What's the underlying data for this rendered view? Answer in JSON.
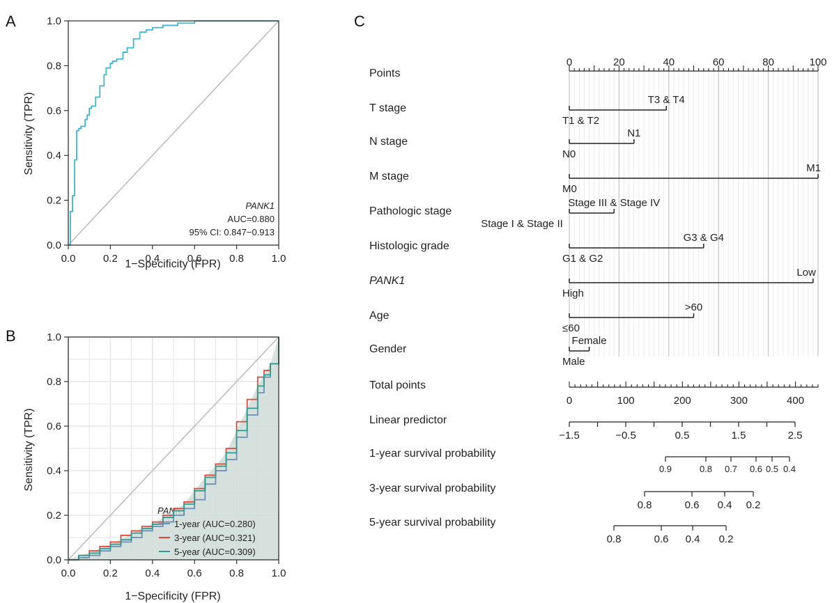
{
  "panels": {
    "A": {
      "letter": "A",
      "chart_data": {
        "type": "line",
        "xlabel": "1−Specificity (FPR)",
        "ylabel": "Sensitivity (TPR)",
        "xlim": [
          0,
          1
        ],
        "ylim": [
          0,
          1
        ],
        "xticks": [
          "0.0",
          "0.2",
          "0.4",
          "0.6",
          "0.8",
          "1.0"
        ],
        "yticks": [
          "0.0",
          "0.2",
          "0.4",
          "0.6",
          "0.8",
          "1.0"
        ],
        "grid": false,
        "diagonal": true,
        "annotation": {
          "gene": "PANK1",
          "auc": "AUC=0.880",
          "ci": "95% CI: 0.847−0.913"
        },
        "series": [
          {
            "color": "#3cb7d2",
            "x": [
              0,
              0.01,
              0.01,
              0.02,
              0.03,
              0.03,
              0.04,
              0.04,
              0.05,
              0.06,
              0.08,
              0.09,
              0.1,
              0.11,
              0.13,
              0.15,
              0.17,
              0.18,
              0.2,
              0.21,
              0.23,
              0.26,
              0.28,
              0.31,
              0.34,
              0.37,
              0.4,
              0.45,
              0.52,
              0.6,
              0.7,
              0.8,
              0.9,
              1.0
            ],
            "y": [
              0,
              0.05,
              0.15,
              0.22,
              0.3,
              0.38,
              0.45,
              0.51,
              0.52,
              0.53,
              0.56,
              0.58,
              0.61,
              0.62,
              0.66,
              0.71,
              0.76,
              0.79,
              0.81,
              0.82,
              0.83,
              0.86,
              0.88,
              0.92,
              0.95,
              0.96,
              0.97,
              0.98,
              0.99,
              1.0,
              1.0,
              1.0,
              1.0,
              1.0
            ]
          }
        ]
      }
    },
    "B": {
      "letter": "B",
      "chart_data": {
        "type": "area",
        "xlabel": "1−Specificity (FPR)",
        "ylabel": "Sensitivity (TPR)",
        "xlim": [
          0,
          1
        ],
        "ylim": [
          0,
          1
        ],
        "xticks": [
          "0.0",
          "0.2",
          "0.4",
          "0.6",
          "0.8",
          "1.0"
        ],
        "yticks": [
          "0.0",
          "0.2",
          "0.4",
          "0.6",
          "0.8",
          "1.0"
        ],
        "grid": true,
        "diagonal": true,
        "legend_title": "PANK1",
        "legend_position": "bottom-right",
        "series": [
          {
            "name": "1-year (AUC=0.280)",
            "color": "#6b8fb5",
            "x": [
              0,
              0.05,
              0.1,
              0.15,
              0.2,
              0.25,
              0.3,
              0.35,
              0.4,
              0.45,
              0.5,
              0.55,
              0.6,
              0.65,
              0.7,
              0.75,
              0.8,
              0.85,
              0.9,
              0.93,
              0.96,
              1.0
            ],
            "y": [
              0,
              0.01,
              0.02,
              0.04,
              0.06,
              0.08,
              0.1,
              0.13,
              0.15,
              0.17,
              0.2,
              0.23,
              0.27,
              0.34,
              0.4,
              0.45,
              0.55,
              0.65,
              0.75,
              0.82,
              0.88,
              1.0
            ]
          },
          {
            "name": "3-year (AUC=0.321)",
            "color": "#e0473a",
            "x": [
              0,
              0.05,
              0.1,
              0.15,
              0.2,
              0.25,
              0.3,
              0.35,
              0.4,
              0.45,
              0.5,
              0.55,
              0.6,
              0.65,
              0.7,
              0.75,
              0.8,
              0.85,
              0.9,
              0.93,
              0.96,
              1.0
            ],
            "y": [
              0,
              0.02,
              0.04,
              0.06,
              0.08,
              0.11,
              0.13,
              0.15,
              0.17,
              0.2,
              0.23,
              0.26,
              0.32,
              0.38,
              0.43,
              0.5,
              0.62,
              0.72,
              0.82,
              0.85,
              0.88,
              1.0
            ]
          },
          {
            "name": "5-year (AUC=0.309)",
            "color": "#2a9d8f",
            "x": [
              0,
              0.05,
              0.1,
              0.15,
              0.2,
              0.25,
              0.3,
              0.35,
              0.4,
              0.45,
              0.5,
              0.55,
              0.6,
              0.65,
              0.7,
              0.75,
              0.8,
              0.85,
              0.9,
              0.93,
              0.96,
              1.0
            ],
            "y": [
              0,
              0.02,
              0.03,
              0.05,
              0.07,
              0.09,
              0.12,
              0.14,
              0.16,
              0.19,
              0.22,
              0.25,
              0.31,
              0.37,
              0.42,
              0.48,
              0.58,
              0.68,
              0.78,
              0.83,
              0.88,
              1.0
            ]
          }
        ],
        "fill_color": "#cfdcd8"
      }
    },
    "C": {
      "letter": "C",
      "chart_data": {
        "type": "nomogram",
        "points_axis": {
          "label": "Points",
          "min": 0,
          "max": 100,
          "ticks": [
            "0",
            "20",
            "40",
            "60",
            "80",
            "100"
          ]
        },
        "variables": [
          {
            "label": "T stage",
            "from": 0,
            "to": 39,
            "low": "T1 & T2",
            "high": "T3 & T4"
          },
          {
            "label": "N stage",
            "from": 0,
            "to": 26,
            "low": "N0",
            "high": "N1"
          },
          {
            "label": "M stage",
            "from": 0,
            "to": 100,
            "low": "M0",
            "high": "M1"
          },
          {
            "label": "Pathologic stage",
            "from": 0,
            "to": 18,
            "low": "Stage I & Stage II",
            "high": "Stage III & Stage IV"
          },
          {
            "label": "Histologic grade",
            "from": 0,
            "to": 54,
            "low": "G1 & G2",
            "high": "G3 & G4"
          },
          {
            "label": "PANK1",
            "italic": true,
            "from": 0,
            "to": 98,
            "low": "High",
            "high": "Low"
          },
          {
            "label": "Age",
            "from": 0,
            "to": 50,
            "low": "≤60",
            "high": ">60"
          },
          {
            "label": "Gender",
            "from": 0,
            "to": 8,
            "low": "Male",
            "high": "Female"
          }
        ],
        "total_points": {
          "label": "Total points",
          "min": 0,
          "max": 440,
          "ticks": [
            0,
            100,
            200,
            300,
            400
          ]
        },
        "linear_predictor": {
          "label": "Linear predictor",
          "range": [
            -1.5,
            2.5
          ],
          "ticks": [
            "−1.5",
            "−0.5",
            "0.5",
            "1.5",
            "2.5"
          ]
        },
        "survival": [
          {
            "label": "1-year survival probability",
            "ticks": [
              "0.9",
              "0.8",
              "0.7",
              "0.6",
              "0.5",
              "0.4"
            ],
            "values": [
              0.9,
              0.8,
              0.7,
              0.6,
              0.5,
              0.4
            ]
          },
          {
            "label": "3-year survival probability",
            "ticks": [
              "0.8",
              "0.6",
              "0.4",
              "0.2"
            ],
            "values": [
              0.8,
              0.6,
              0.4,
              0.2
            ]
          },
          {
            "label": "5-year survival probability",
            "ticks": [
              "0.8",
              "0.6",
              "0.4",
              "0.2"
            ],
            "values": [
              0.8,
              0.6,
              0.4,
              0.2
            ]
          }
        ]
      }
    }
  }
}
